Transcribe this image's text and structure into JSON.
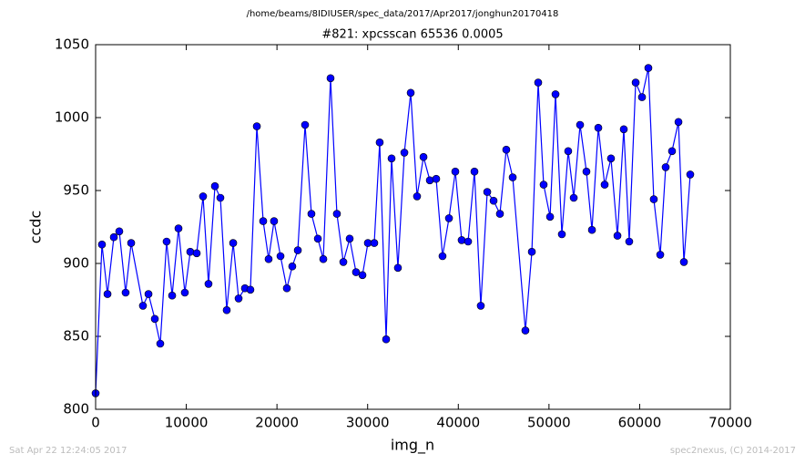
{
  "chart_data": {
    "type": "line",
    "supertitle": "/home/beams/8IDIUSER/spec_data/2017/Apr2017/jonghun20170418",
    "title": "#821: xpcsscan 65536 0.0005",
    "xlabel": "img_n",
    "ylabel": "ccdc",
    "footer_left": "Sat Apr 22 12:24:05 2017",
    "footer_right": "spec2nexus, (C) 2014-2017",
    "xlim": [
      0,
      70000
    ],
    "ylim": [
      800,
      1050
    ],
    "xticks": [
      0,
      10000,
      20000,
      30000,
      40000,
      50000,
      60000,
      70000
    ],
    "yticks": [
      800,
      850,
      900,
      950,
      1000,
      1050
    ],
    "series": [
      {
        "name": "ccdc",
        "color": "#0000ff",
        "x": [
          0,
          700,
          1310,
          2010,
          2610,
          3310,
          3920,
          5220,
          5830,
          6530,
          7130,
          7830,
          8440,
          9140,
          9840,
          10440,
          11150,
          11850,
          12450,
          13160,
          13760,
          14460,
          15170,
          15770,
          16470,
          17070,
          17780,
          18480,
          19080,
          19680,
          20390,
          21090,
          21690,
          22300,
          23100,
          23800,
          24510,
          25110,
          25910,
          26610,
          27320,
          28020,
          28720,
          29430,
          30030,
          30730,
          31330,
          32040,
          32640,
          33340,
          34050,
          34750,
          35450,
          36160,
          36860,
          37560,
          38260,
          38970,
          39670,
          40370,
          41080,
          41780,
          42480,
          43190,
          43890,
          44590,
          45290,
          46000,
          47400,
          48110,
          48810,
          49410,
          50120,
          50720,
          51420,
          52120,
          52730,
          53430,
          54130,
          54740,
          55440,
          56140,
          56840,
          57550,
          58250,
          58850,
          59560,
          60260,
          60960,
          61560,
          62270,
          62870,
          63570,
          64280,
          64880,
          65580
        ],
        "values": [
          811,
          913,
          879,
          918,
          922,
          880,
          914,
          871,
          879,
          862,
          845,
          915,
          878,
          924,
          880,
          908,
          907,
          946,
          886,
          953,
          945,
          868,
          914,
          876,
          883,
          882,
          994,
          929,
          903,
          929,
          905,
          883,
          898,
          909,
          995,
          934,
          917,
          903,
          1027,
          934,
          901,
          917,
          894,
          892,
          914,
          914,
          983,
          848,
          972,
          897,
          976,
          1017,
          946,
          973,
          957,
          958,
          905,
          931,
          963,
          916,
          915,
          963,
          871,
          949,
          943,
          934,
          978,
          959,
          854,
          908,
          1024,
          954,
          932,
          1016,
          920,
          977,
          945,
          995,
          963,
          923,
          993,
          954,
          972,
          919,
          992,
          915,
          1024,
          1014,
          1034,
          944,
          906,
          966,
          977,
          997,
          901,
          961
        ]
      }
    ]
  }
}
